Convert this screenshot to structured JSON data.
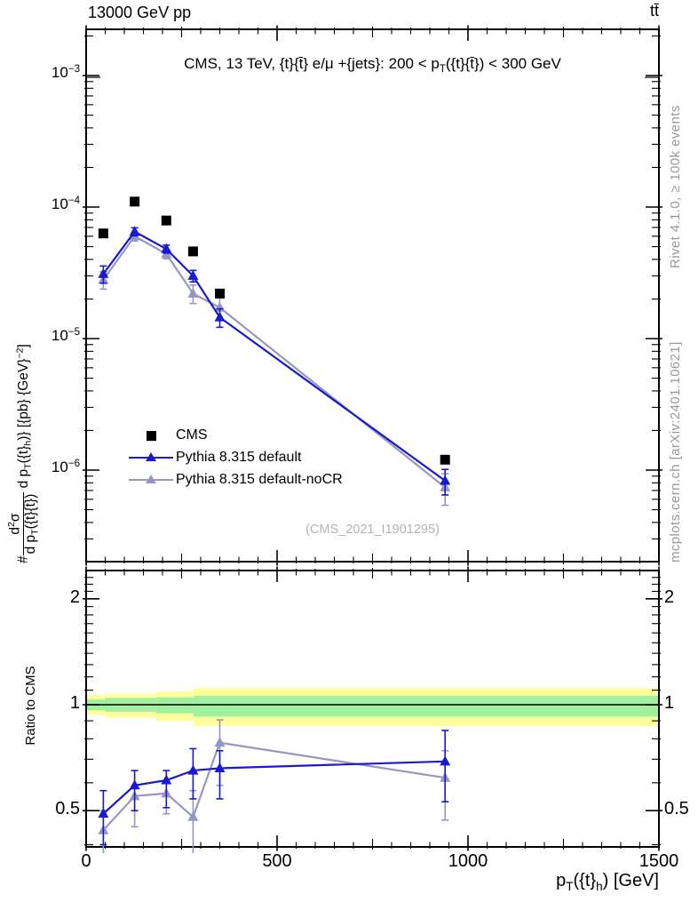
{
  "header": {
    "left": "13000 GeV pp",
    "right": "tt̄"
  },
  "title_rich": [
    {
      "t": "text",
      "v": "CMS, 13 TeV, {t}{t̄} e/μ +{jets}: 200 <  p"
    },
    {
      "t": "sub",
      "v": "T"
    },
    {
      "t": "text",
      "v": "({t}{t̄}) < 300 GeV"
    }
  ],
  "ylabel": {
    "prefix": "#",
    "numerator": [
      {
        "t": "text",
        "v": "d"
      },
      {
        "t": "sup",
        "v": "2"
      },
      {
        "t": "text",
        "v": "σ"
      }
    ],
    "denominator": [
      {
        "t": "text",
        "v": "d p"
      },
      {
        "t": "sub",
        "v": "T"
      },
      {
        "t": "text",
        "v": "({t}{t̄})"
      }
    ],
    "rest": [
      {
        "t": "text",
        "v": " d p"
      },
      {
        "t": "sub",
        "v": "T"
      },
      {
        "t": "text",
        "v": "({t}"
      },
      {
        "t": "sub",
        "v": "h"
      },
      {
        "t": "text",
        "v": ")} [{pb} {GeV}"
      },
      {
        "t": "sup",
        "v": "−2"
      },
      {
        "t": "text",
        "v": "]"
      }
    ]
  },
  "xlabel_rich": [
    {
      "t": "text",
      "v": "p"
    },
    {
      "t": "sub",
      "v": "T"
    },
    {
      "t": "text",
      "v": "({t}"
    },
    {
      "t": "sub",
      "v": "h"
    },
    {
      "t": "text",
      "v": ") [GeV]"
    }
  ],
  "ratio_ylabel": "Ratio to CMS",
  "credits": {
    "top": "Rivet 4.1.0, ≥ 100k events",
    "bottom": "mcplots.cern.ch [arXiv:2401.10621]"
  },
  "watermark": "(CMS_2021_I1901295)",
  "legend": [
    {
      "label": "CMS",
      "marker": "square",
      "color": "#000000"
    },
    {
      "label": "Pythia 8.315 default",
      "marker": "triangle-line",
      "color": "#1919cd"
    },
    {
      "label": "Pythia 8.315 default-noCR",
      "marker": "triangle-line",
      "color": "#9696c0"
    }
  ],
  "colors": {
    "blue": "#1919cd",
    "gray": "#9696c0",
    "band_yellow": "#ffff9c",
    "band_green": "#a0f0a0",
    "frame": "#000000"
  },
  "chart_data": [
    {
      "type": "scatter",
      "panel": "main",
      "title": "CMS, 13 TeV, {t}{tbar} e/mu +{jets}: 200 < pT({t}{tbar}) < 300 GeV",
      "xlabel": "pT({t}_h) [GeV]",
      "ylabel": "# d2sigma / d pT({t}{tbar}) d pT({t}_h) [{pb} {GeV}^-2]",
      "xlim": [
        0,
        1500
      ],
      "ylog": true,
      "ylim": [
        2e-07,
        0.0022
      ],
      "ytick_exponents": [
        -3,
        -4,
        -5,
        -6
      ],
      "x": [
        45,
        127,
        210,
        280,
        350,
        940
      ],
      "series": [
        {
          "name": "CMS",
          "marker": "square",
          "color": "#000000",
          "values": [
            6.3e-05,
            0.00011,
            7.9e-05,
            4.6e-05,
            2.2e-05,
            1.2e-06
          ],
          "err_frac": [
            0,
            0,
            0,
            0,
            0,
            0
          ]
        },
        {
          "name": "Pythia 8.315 default",
          "marker": "triangle",
          "color": "#1919cd",
          "values": [
            3.1e-05,
            6.5e-05,
            4.8e-05,
            3e-05,
            1.45e-05,
            8.3e-07
          ],
          "err_frac": [
            0.15,
            0.07,
            0.07,
            0.1,
            0.16,
            0.22
          ]
        },
        {
          "name": "Pythia 8.315 default-noCR",
          "marker": "triangle",
          "color": "#9696c0",
          "values": [
            2.8e-05,
            6e-05,
            4.4e-05,
            2.2e-05,
            1.72e-05,
            7.4e-07
          ],
          "err_frac": [
            0.15,
            0.08,
            0.08,
            0.16,
            0.2,
            0.27
          ]
        }
      ],
      "legend_position": "lower-left",
      "grid": false
    },
    {
      "type": "ratio",
      "panel": "ratio",
      "ylabel": "Ratio to CMS",
      "ylog": true,
      "ylim": [
        0.394,
        2.4
      ],
      "xlim": [
        0,
        1500
      ],
      "xticks": [
        0,
        500,
        1000,
        1500
      ],
      "ytick_values": [
        2,
        1,
        0.5
      ],
      "ytick_labels": [
        "2",
        "1",
        "0.5"
      ],
      "yminor": [
        0.4,
        0.6,
        0.7,
        0.8,
        0.9,
        1.1,
        1.2,
        1.3,
        1.4,
        1.5,
        1.6,
        1.7,
        1.8,
        1.9,
        2.1,
        2.2,
        2.3,
        2.4
      ],
      "x": [
        45,
        127,
        210,
        280,
        350,
        940
      ],
      "series": [
        {
          "name": "Pythia 8.315 default",
          "color": "#1919cd",
          "values": [
            0.49,
            0.59,
            0.61,
            0.65,
            0.66,
            0.69
          ],
          "err_lo": [
            0.09,
            0.09,
            0.1,
            0.11,
            0.12,
            0.16
          ],
          "err_hi": [
            0.08,
            0.06,
            0.04,
            0.1,
            0.08,
            0.155
          ]
        },
        {
          "name": "Pythia 8.315 default-noCR",
          "color": "#9696c0",
          "values": [
            0.44,
            0.55,
            0.56,
            0.48,
            0.78,
            0.62
          ],
          "err_lo": [
            0.08,
            0.1,
            0.07,
            0.18,
            0.19,
            0.15
          ],
          "err_hi": [
            0.06,
            0.04,
            0.04,
            0.09,
            0.125,
            0.12
          ]
        }
      ],
      "bands": {
        "yellow": {
          "color": "#ffff9c",
          "segments": [
            {
              "x0": 0,
              "x1": 49,
              "lo": 0.935,
              "hi": 1.065
            },
            {
              "x0": 49,
              "x1": 184,
              "lo": 0.92,
              "hi": 1.075
            },
            {
              "x0": 184,
              "x1": 281,
              "lo": 0.9,
              "hi": 1.09
            },
            {
              "x0": 281,
              "x1": 1500,
              "lo": 0.87,
              "hi": 1.115
            }
          ]
        },
        "green": {
          "color": "#a0f0a0",
          "segments": [
            {
              "x0": 0,
              "x1": 49,
              "lo": 0.965,
              "hi": 1.035
            },
            {
              "x0": 49,
              "x1": 184,
              "lo": 0.955,
              "hi": 1.045
            },
            {
              "x0": 184,
              "x1": 281,
              "lo": 0.945,
              "hi": 1.05
            },
            {
              "x0": 281,
              "x1": 1500,
              "lo": 0.925,
              "hi": 1.06
            }
          ]
        },
        "reference_line": 1.0
      }
    }
  ]
}
